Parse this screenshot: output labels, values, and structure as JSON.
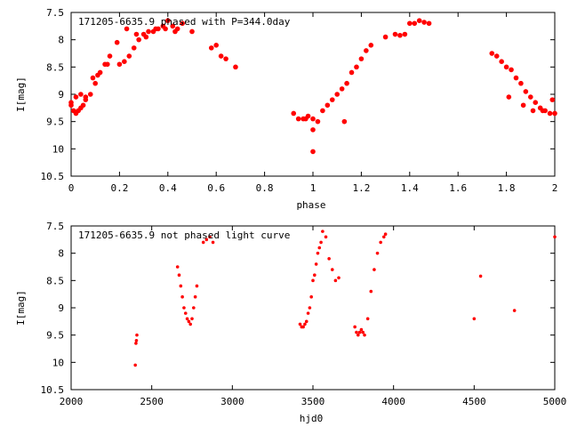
{
  "chart_data": [
    {
      "type": "scatter",
      "title": "171205-6635.9 phased with P=344.0day",
      "xlabel": "phase",
      "ylabel": "I[mag]",
      "xlim": [
        0,
        2
      ],
      "ylim": [
        10.5,
        7.5
      ],
      "y_reversed": true,
      "xticks": [
        "0",
        "0.2",
        "0.4",
        "0.6",
        "0.8",
        "1",
        "1.2",
        "1.4",
        "1.6",
        "1.8",
        "2"
      ],
      "yticks": [
        "7.5",
        "8",
        "8.5",
        "9",
        "9.5",
        "10",
        "10.5"
      ],
      "grid": false,
      "marker_color": "#ff0000",
      "series": [
        {
          "x": [
            0.0,
            0.01,
            0.02,
            0.03,
            0.04,
            0.05,
            0.06,
            0.08,
            0.1,
            0.12,
            0.14,
            0.16,
            0.2,
            0.22,
            0.24,
            0.26,
            0.28,
            0.3,
            0.32,
            0.34,
            0.36,
            0.38,
            0.4,
            0.42,
            0.44,
            0.46,
            0.5,
            0.58,
            0.6,
            0.62,
            0.64,
            0.68,
            0.92,
            0.94,
            0.96,
            0.98,
            1.0,
            1.0,
            1.0,
            1.02,
            1.04,
            1.06,
            1.08,
            1.1,
            1.12,
            1.14,
            1.16,
            1.18,
            1.2,
            1.22,
            1.24,
            1.3,
            1.34,
            1.36,
            1.38,
            1.4,
            1.42,
            1.44,
            1.46,
            1.48,
            1.74,
            1.76,
            1.78,
            1.8,
            1.82,
            1.84,
            1.86,
            1.88,
            1.9,
            1.92,
            1.94,
            1.96,
            1.98,
            2.0,
            0.0,
            0.02,
            0.04,
            0.06,
            0.09,
            0.11,
            0.15,
            0.19,
            0.23,
            0.27,
            0.31,
            0.35,
            0.39,
            0.43,
            1.81,
            1.87,
            1.91,
            1.95,
            1.99,
            0.97,
            1.13
          ],
          "y": [
            9.2,
            9.3,
            9.35,
            9.3,
            9.25,
            9.2,
            9.1,
            9.0,
            8.8,
            8.6,
            8.45,
            8.3,
            8.45,
            8.4,
            8.3,
            8.15,
            8.0,
            7.9,
            7.85,
            7.85,
            7.8,
            7.75,
            7.65,
            7.75,
            7.8,
            7.7,
            7.85,
            8.15,
            8.1,
            8.3,
            8.35,
            8.5,
            9.35,
            9.45,
            9.45,
            9.4,
            9.45,
            9.65,
            10.05,
            9.5,
            9.3,
            9.2,
            9.1,
            9.0,
            8.9,
            8.8,
            8.6,
            8.5,
            8.35,
            8.2,
            8.1,
            7.95,
            7.9,
            7.92,
            7.9,
            7.7,
            7.7,
            7.65,
            7.68,
            7.7,
            8.25,
            8.3,
            8.4,
            8.5,
            8.55,
            8.7,
            8.8,
            8.95,
            9.05,
            9.15,
            9.25,
            9.3,
            9.35,
            9.35,
            9.15,
            9.05,
            9.0,
            9.05,
            8.7,
            8.65,
            8.45,
            8.05,
            7.8,
            7.9,
            7.95,
            7.8,
            7.8,
            7.85,
            9.05,
            9.2,
            9.3,
            9.3,
            9.1,
            9.45,
            9.5
          ]
        }
      ]
    },
    {
      "type": "scatter",
      "title": "171205-6635.9 not phased light curve",
      "xlabel": "hjd0",
      "ylabel": "I[mag]",
      "xlim": [
        2000,
        5000
      ],
      "ylim": [
        10.5,
        7.5
      ],
      "y_reversed": true,
      "xticks": [
        "2000",
        "2500",
        "3000",
        "3500",
        "4000",
        "4500",
        "5000"
      ],
      "yticks": [
        "7.5",
        "8",
        "8.5",
        "9",
        "9.5",
        "10",
        "10.5"
      ],
      "grid": false,
      "marker_color": "#ff0000",
      "series": [
        {
          "x": [
            2398,
            2402,
            2405,
            2408,
            2660,
            2670,
            2680,
            2690,
            2700,
            2710,
            2720,
            2730,
            2740,
            2750,
            2760,
            2770,
            2780,
            2820,
            2840,
            2860,
            2880,
            3420,
            3430,
            3440,
            3450,
            3460,
            3470,
            3480,
            3490,
            3500,
            3510,
            3520,
            3530,
            3540,
            3550,
            3560,
            3580,
            3600,
            3620,
            3640,
            3660,
            3760,
            3770,
            3780,
            3790,
            3800,
            3810,
            3820,
            3840,
            3860,
            3880,
            3900,
            3920,
            3940,
            3950,
            4500,
            4540,
            4750,
            5000
          ],
          "y": [
            10.05,
            9.65,
            9.6,
            9.5,
            8.25,
            8.4,
            8.6,
            8.8,
            9.0,
            9.1,
            9.2,
            9.25,
            9.3,
            9.2,
            9.0,
            8.8,
            8.6,
            7.8,
            7.75,
            7.7,
            7.8,
            9.3,
            9.35,
            9.35,
            9.3,
            9.25,
            9.1,
            9.0,
            8.8,
            8.5,
            8.4,
            8.2,
            8.0,
            7.9,
            7.8,
            7.6,
            7.7,
            8.1,
            8.3,
            8.5,
            8.45,
            9.35,
            9.45,
            9.5,
            9.45,
            9.4,
            9.45,
            9.5,
            9.2,
            8.7,
            8.3,
            8.0,
            7.8,
            7.7,
            7.65,
            9.2,
            8.42,
            9.05,
            7.7
          ]
        }
      ]
    }
  ]
}
